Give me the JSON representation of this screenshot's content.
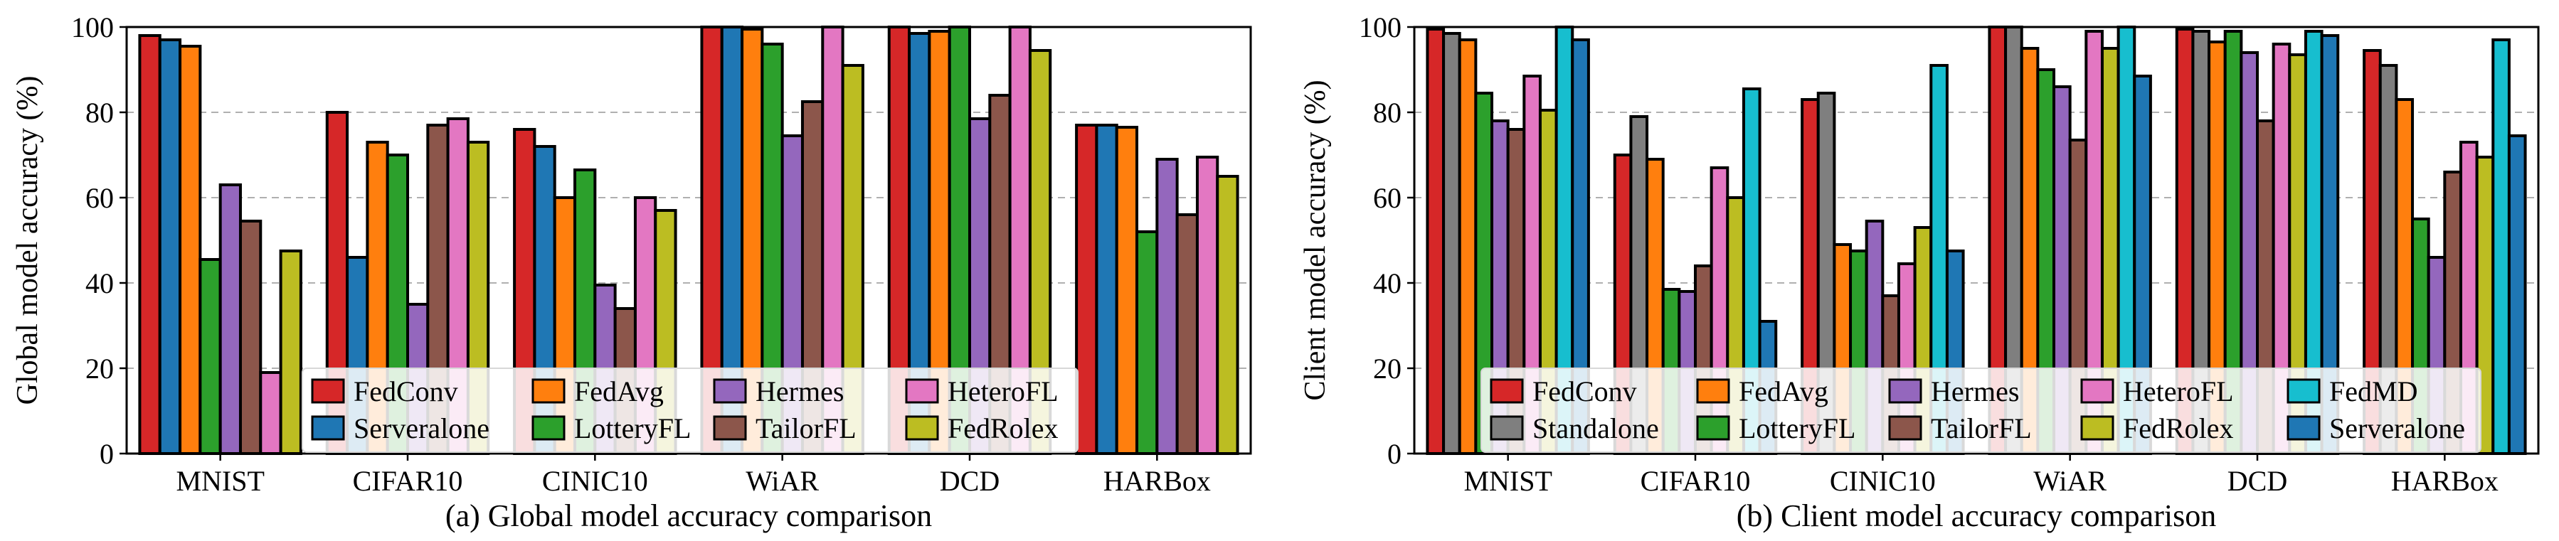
{
  "chart_data": [
    {
      "type": "bar",
      "caption": "(a)  Global model accuracy comparison",
      "ylabel": "Global model accuracy (%)",
      "xlabel": "",
      "ylim": [
        0,
        100
      ],
      "yticks": [
        0,
        20,
        40,
        60,
        80,
        100
      ],
      "grid": "horizontal dashed",
      "legend_position": "bottom-right, inside plot, 4 columns x 2 rows",
      "categories": [
        "MNIST",
        "CIFAR10",
        "CINIC10",
        "WiAR",
        "DCD",
        "HARBox"
      ],
      "series": [
        {
          "name": "FedConv",
          "color": "#d62728",
          "values": [
            98,
            80,
            76,
            100,
            100,
            77
          ]
        },
        {
          "name": "Serveralone",
          "color": "#1f77b4",
          "values": [
            97,
            46,
            72,
            100,
            98.5,
            77
          ]
        },
        {
          "name": "FedAvg",
          "color": "#ff7f0e",
          "values": [
            95.5,
            73,
            60,
            99.5,
            99,
            76.5
          ]
        },
        {
          "name": "LotteryFL",
          "color": "#2ca02c",
          "values": [
            45.5,
            70,
            66.5,
            96,
            100,
            52
          ]
        },
        {
          "name": "Hermes",
          "color": "#9467bd",
          "values": [
            63,
            35,
            39.5,
            74.5,
            78.5,
            69
          ]
        },
        {
          "name": "TailorFL",
          "color": "#8c564b",
          "values": [
            54.5,
            77,
            34,
            82.5,
            84,
            56
          ]
        },
        {
          "name": "HeteroFL",
          "color": "#e377c2",
          "values": [
            19,
            78.5,
            60,
            100,
            100,
            69.5
          ]
        },
        {
          "name": "FedRolex",
          "color": "#bcbd22",
          "values": [
            47.5,
            73,
            57,
            91,
            94.5,
            65
          ]
        }
      ],
      "legend_order": [
        "FedConv",
        "FedAvg",
        "Hermes",
        "HeteroFL",
        "Serveralone",
        "LotteryFL",
        "TailorFL",
        "FedRolex"
      ]
    },
    {
      "type": "bar",
      "caption": "(b)  Client model accuracy comparison",
      "ylabel": "Client model accuracy (%)",
      "xlabel": "",
      "ylim": [
        0,
        100
      ],
      "yticks": [
        0,
        20,
        40,
        60,
        80,
        100
      ],
      "grid": "horizontal dashed",
      "legend_position": "bottom-right, inside plot, 5 columns x 2 rows",
      "categories": [
        "MNIST",
        "CIFAR10",
        "CINIC10",
        "WiAR",
        "DCD",
        "HARBox"
      ],
      "series": [
        {
          "name": "FedConv",
          "color": "#d62728",
          "values": [
            99.5,
            70,
            83,
            100,
            99.5,
            94.5
          ]
        },
        {
          "name": "Standalone",
          "color": "#7f7f7f",
          "values": [
            98.5,
            79,
            84.5,
            100,
            99,
            91
          ]
        },
        {
          "name": "FedAvg",
          "color": "#ff7f0e",
          "values": [
            97,
            69,
            49,
            95,
            96.5,
            83
          ]
        },
        {
          "name": "LotteryFL",
          "color": "#2ca02c",
          "values": [
            84.5,
            38.5,
            47.5,
            90,
            99,
            55
          ]
        },
        {
          "name": "Hermes",
          "color": "#9467bd",
          "values": [
            78,
            38,
            54.5,
            86,
            94,
            46
          ]
        },
        {
          "name": "TailorFL",
          "color": "#8c564b",
          "values": [
            76,
            44,
            37,
            73.5,
            78,
            66
          ]
        },
        {
          "name": "HeteroFL",
          "color": "#e377c2",
          "values": [
            88.5,
            67,
            44.5,
            99,
            96,
            73
          ]
        },
        {
          "name": "FedRolex",
          "color": "#bcbd22",
          "values": [
            80.5,
            60,
            53,
            95,
            93.5,
            69.5
          ]
        },
        {
          "name": "FedMD",
          "color": "#17becf",
          "values": [
            100,
            85.5,
            91,
            100,
            99,
            97
          ]
        },
        {
          "name": "Serveralone",
          "color": "#1f77b4",
          "values": [
            97,
            31,
            47.5,
            88.5,
            98,
            74.5
          ]
        }
      ],
      "legend_order": [
        "FedConv",
        "FedAvg",
        "Hermes",
        "HeteroFL",
        "FedMD",
        "Standalone",
        "LotteryFL",
        "TailorFL",
        "FedRolex",
        "Serveralone"
      ]
    }
  ]
}
